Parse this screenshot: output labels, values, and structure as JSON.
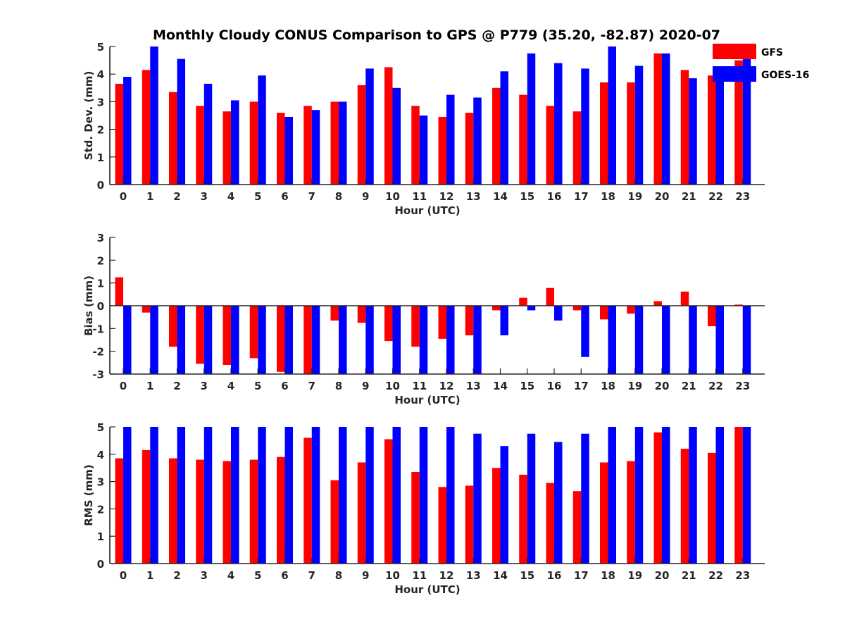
{
  "title": "Monthly Cloudy CONUS Comparison to GPS @ P779 (35.20, -82.87) 2020-07",
  "legend": {
    "position": "top-right",
    "entries": [
      {
        "label": "GFS",
        "color": "#ff0000"
      },
      {
        "label": "GOES-16",
        "color": "#0000ff"
      }
    ]
  },
  "chart_data": [
    {
      "type": "bar",
      "xlabel": "Hour (UTC)",
      "ylabel": "Std. Dev. (mm)",
      "ylim": [
        0,
        5
      ],
      "yticks": [
        0,
        1,
        2,
        3,
        4,
        5
      ],
      "categories": [
        "0",
        "1",
        "2",
        "3",
        "4",
        "5",
        "6",
        "7",
        "8",
        "9",
        "10",
        "11",
        "12",
        "13",
        "14",
        "15",
        "16",
        "17",
        "18",
        "19",
        "20",
        "21",
        "22",
        "23"
      ],
      "series": [
        {
          "name": "GFS",
          "color": "#ff0000",
          "values": [
            3.65,
            4.15,
            3.35,
            2.85,
            2.65,
            3.0,
            2.6,
            2.85,
            3.0,
            3.6,
            4.25,
            2.85,
            2.45,
            2.6,
            3.5,
            3.25,
            2.85,
            2.65,
            3.7,
            3.7,
            4.75,
            4.15,
            3.95,
            4.5
          ]
        },
        {
          "name": "GOES-16",
          "color": "#0000ff",
          "values": [
            3.9,
            5.0,
            4.55,
            3.65,
            3.05,
            3.95,
            2.45,
            2.7,
            3.0,
            4.2,
            3.5,
            2.5,
            3.25,
            3.15,
            4.1,
            4.75,
            4.4,
            4.2,
            5.0,
            4.3,
            4.75,
            3.85,
            4.1,
            4.7
          ]
        }
      ]
    },
    {
      "type": "bar",
      "xlabel": "Hour (UTC)",
      "ylabel": "Bias (mm)",
      "ylim": [
        -3,
        3
      ],
      "yticks": [
        -3,
        -2,
        -1,
        0,
        1,
        2,
        3
      ],
      "zero_line": true,
      "categories": [
        "0",
        "1",
        "2",
        "3",
        "4",
        "5",
        "6",
        "7",
        "8",
        "9",
        "10",
        "11",
        "12",
        "13",
        "14",
        "15",
        "16",
        "17",
        "18",
        "19",
        "20",
        "21",
        "22",
        "23"
      ],
      "series": [
        {
          "name": "GFS",
          "color": "#ff0000",
          "values": [
            1.25,
            -0.3,
            -1.8,
            -2.55,
            -2.6,
            -2.3,
            -2.9,
            -3.0,
            -0.65,
            -0.75,
            -1.55,
            -1.8,
            -1.45,
            -1.3,
            -0.2,
            0.35,
            0.78,
            -0.2,
            -0.6,
            -0.35,
            0.2,
            0.62,
            -0.9,
            0.05
          ]
        },
        {
          "name": "GOES-16",
          "color": "#0000ff",
          "values": [
            -3.0,
            -3.0,
            -3.0,
            -3.0,
            -3.0,
            -3.0,
            -3.0,
            -3.0,
            -3.0,
            -3.0,
            -3.0,
            -3.0,
            -3.0,
            -3.0,
            -1.3,
            -0.2,
            -0.65,
            -2.25,
            -3.0,
            -3.0,
            -3.0,
            -3.0,
            -3.0,
            -3.0
          ]
        }
      ]
    },
    {
      "type": "bar",
      "xlabel": "Hour (UTC)",
      "ylabel": "RMS (mm)",
      "ylim": [
        0,
        5
      ],
      "yticks": [
        0,
        1,
        2,
        3,
        4,
        5
      ],
      "categories": [
        "0",
        "1",
        "2",
        "3",
        "4",
        "5",
        "6",
        "7",
        "8",
        "9",
        "10",
        "11",
        "12",
        "13",
        "14",
        "15",
        "16",
        "17",
        "18",
        "19",
        "20",
        "21",
        "22",
        "23"
      ],
      "series": [
        {
          "name": "GFS",
          "color": "#ff0000",
          "values": [
            3.85,
            4.15,
            3.85,
            3.8,
            3.75,
            3.8,
            3.9,
            4.6,
            3.05,
            3.7,
            4.55,
            3.35,
            2.8,
            2.85,
            3.5,
            3.25,
            2.95,
            2.65,
            3.7,
            3.75,
            4.8,
            4.2,
            4.05,
            5.0
          ]
        },
        {
          "name": "GOES-16",
          "color": "#0000ff",
          "values": [
            5.0,
            5.0,
            5.0,
            5.0,
            5.0,
            5.0,
            5.0,
            5.0,
            5.0,
            5.0,
            5.0,
            5.0,
            5.0,
            4.75,
            4.3,
            4.75,
            4.45,
            4.75,
            5.0,
            5.0,
            5.0,
            5.0,
            5.0,
            5.0
          ]
        }
      ]
    }
  ]
}
